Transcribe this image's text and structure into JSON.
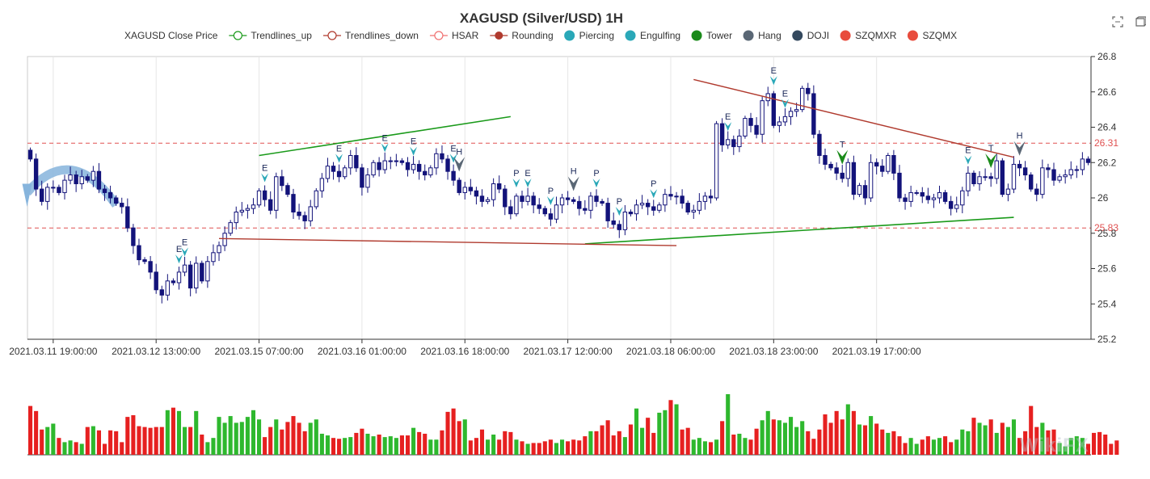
{
  "header": {
    "title": "XAGUSD (Silver/USD) 1H"
  },
  "legend": [
    {
      "label": "XAGUSD Close Price",
      "icon": "none",
      "color": "#333333"
    },
    {
      "label": "Trendlines_up",
      "icon": "circle-line",
      "color": "#1a9a1a"
    },
    {
      "label": "Trendlines_down",
      "icon": "circle-line",
      "color": "#b03a2e"
    },
    {
      "label": "HSAR",
      "icon": "circle-line",
      "color": "#f07070"
    },
    {
      "label": "Rounding",
      "icon": "dot-line",
      "color": "#b03a2e"
    },
    {
      "label": "Piercing",
      "icon": "dot",
      "color": "#2aa8b8"
    },
    {
      "label": "Engulfing",
      "icon": "dot",
      "color": "#2aa8b8"
    },
    {
      "label": "Tower",
      "icon": "dot",
      "color": "#1a8a1a"
    },
    {
      "label": "Hang",
      "icon": "dot",
      "color": "#5a6775"
    },
    {
      "label": "DOJI",
      "icon": "dot",
      "color": "#34495e"
    },
    {
      "label": "SZQMXR",
      "icon": "dot",
      "color": "#e84c3d"
    },
    {
      "label": "SZQMX",
      "icon": "dot",
      "color": "#e84c3d"
    }
  ],
  "toolbox": {
    "zoom_icon": "zoom-icon",
    "restore_icon": "restore-icon"
  },
  "watermark": "WikiFX",
  "colors": {
    "up": "#ffffff",
    "down": "#13137a",
    "candle_border": "#13137a",
    "vol_up": "#2eb82e",
    "vol_down": "#e62020",
    "trend_up": "#1a9a1a",
    "trend_down": "#b03a2e",
    "hsar": "#e05050",
    "grid": "#e6e6e6"
  },
  "chart_data": {
    "type": "candlestick",
    "title": "XAGUSD (Silver/USD) 1H",
    "ylim": [
      25.2,
      26.8
    ],
    "yticks": [
      "25.2",
      "25.4",
      "25.6",
      "25.8",
      "26",
      "26.2",
      "26.4",
      "26.6",
      "26.8"
    ],
    "xtick_labels": [
      "2021.03.11 19:00:00",
      "2021.03.12 13:00:00",
      "2021.03.15 07:00:00",
      "2021.03.16 01:00:00",
      "2021.03.16 18:00:00",
      "2021.03.17 12:00:00",
      "2021.03.18 06:00:00",
      "2021.03.18 23:00:00",
      "2021.03.19 17:00:00"
    ],
    "xtick_index": [
      4,
      22,
      40,
      58,
      76,
      94,
      112,
      130,
      148
    ],
    "grid": true,
    "hsar_levels": [
      {
        "value": 26.31,
        "label": "26.31"
      },
      {
        "value": 25.83,
        "label": "25.83"
      }
    ],
    "closes": [
      26.22,
      26.05,
      25.98,
      26.06,
      26.06,
      26.03,
      26.1,
      26.13,
      26.08,
      26.12,
      26.1,
      26.15,
      26.05,
      26.03,
      26.0,
      25.97,
      25.95,
      25.83,
      25.73,
      25.65,
      25.64,
      25.58,
      25.48,
      25.45,
      25.53,
      25.52,
      25.58,
      25.62,
      25.49,
      25.63,
      25.53,
      25.64,
      25.69,
      25.73,
      25.8,
      25.86,
      25.92,
      25.93,
      25.94,
      25.96,
      26.04,
      25.99,
      25.93,
      26.12,
      26.07,
      26.02,
      25.92,
      25.9,
      25.87,
      25.95,
      26.04,
      26.11,
      26.18,
      26.15,
      26.12,
      26.17,
      26.24,
      26.17,
      26.06,
      26.13,
      26.2,
      26.16,
      26.21,
      26.21,
      26.21,
      26.2,
      26.16,
      26.19,
      26.15,
      26.13,
      26.17,
      26.25,
      26.22,
      26.15,
      26.1,
      26.03,
      26.06,
      26.04,
      26.01,
      25.98,
      25.99,
      26.08,
      26.05,
      25.95,
      25.91,
      26.01,
      25.98,
      26.01,
      25.96,
      25.94,
      25.91,
      25.88,
      25.96,
      26.0,
      25.99,
      25.98,
      25.94,
      25.93,
      26.01,
      25.98,
      25.97,
      25.87,
      25.85,
      25.82,
      25.92,
      25.91,
      25.96,
      25.97,
      25.95,
      25.93,
      25.96,
      26.02,
      26.01,
      26.01,
      25.97,
      25.92,
      25.93,
      25.98,
      26.01,
      26.0,
      26.42,
      26.3,
      26.33,
      26.29,
      26.35,
      26.45,
      26.41,
      26.36,
      26.55,
      26.59,
      26.41,
      26.43,
      26.46,
      26.49,
      26.5,
      26.62,
      26.59,
      26.36,
      26.24,
      26.19,
      26.17,
      26.14,
      26.11,
      26.2,
      26.02,
      26.07,
      26.0,
      26.2,
      26.18,
      26.15,
      26.24,
      26.14,
      26.0,
      25.98,
      26.03,
      26.03,
      26.01,
      25.99,
      26.0,
      26.03,
      25.98,
      25.94,
      25.96,
      26.04,
      26.14,
      26.08,
      26.12,
      26.12,
      26.11,
      26.21,
      26.02,
      26.05,
      26.19,
      26.17,
      26.13,
      26.05,
      26.02,
      26.17,
      26.16,
      26.1,
      26.12,
      26.13,
      26.16,
      26.16,
      26.22,
      26.2
    ],
    "volumes": [
      58,
      52,
      30,
      33,
      37,
      20,
      15,
      17,
      15,
      13,
      33,
      34,
      29,
      13,
      29,
      28,
      15,
      45,
      47,
      34,
      33,
      32,
      33,
      33,
      53,
      56,
      52,
      33,
      33,
      52,
      24,
      15,
      20,
      45,
      38,
      46,
      38,
      39,
      45,
      53,
      42,
      21,
      33,
      42,
      30,
      39,
      46,
      38,
      28,
      38,
      42,
      25,
      23,
      20,
      19,
      20,
      21,
      26,
      31,
      25,
      22,
      24,
      21,
      22,
      20,
      23,
      23,
      32,
      27,
      25,
      18,
      18,
      29,
      51,
      55,
      40,
      42,
      17,
      20,
      30,
      18,
      24,
      18,
      28,
      27,
      18,
      16,
      13,
      14,
      14,
      16,
      18,
      14,
      18,
      16,
      18,
      17,
      22,
      28,
      28,
      35,
      41,
      23,
      28,
      21,
      36,
      55,
      32,
      44,
      26,
      50,
      53,
      65,
      60,
      30,
      32,
      18,
      20,
      16,
      15,
      18,
      40,
      72,
      24,
      25,
      20,
      18,
      31,
      41,
      52,
      42,
      41,
      38,
      45,
      33,
      40,
      28,
      19,
      30,
      48,
      38,
      52,
      42,
      60,
      52,
      36,
      35,
      46,
      37,
      30,
      26,
      28,
      22,
      14,
      20,
      13,
      18,
      22,
      18,
      20,
      22,
      15,
      18,
      30,
      28,
      44,
      38,
      35,
      42,
      26,
      38,
      33,
      42,
      20,
      28,
      58,
      33,
      38,
      29,
      30,
      14,
      10,
      20,
      22,
      20,
      13,
      26,
      27,
      24,
      13,
      17
    ],
    "trendlines_up": [
      {
        "x1": 40,
        "y1": 26.24,
        "x2": 84,
        "y2": 26.46
      },
      {
        "x1": 97,
        "y1": 25.74,
        "x2": 172,
        "y2": 25.89
      }
    ],
    "trendlines_down": [
      {
        "x1": 116,
        "y1": 26.67,
        "x2": 172,
        "y2": 26.23
      },
      {
        "x1": 33,
        "y1": 25.77,
        "x2": 113,
        "y2": 25.73
      }
    ],
    "rounding": {
      "start": 0,
      "end": 15
    },
    "signals": [
      {
        "i": 26,
        "type": "Engulfing",
        "label": "E"
      },
      {
        "i": 27,
        "type": "Engulfing",
        "label": "E"
      },
      {
        "i": 41,
        "type": "Engulfing",
        "label": "E"
      },
      {
        "i": 54,
        "type": "Engulfing",
        "label": "E"
      },
      {
        "i": 62,
        "type": "Engulfing",
        "label": "E"
      },
      {
        "i": 67,
        "type": "Engulfing",
        "label": "E"
      },
      {
        "i": 74,
        "type": "Engulfing",
        "label": "E"
      },
      {
        "i": 75,
        "type": "Hang",
        "label": "H"
      },
      {
        "i": 85,
        "type": "Piercing",
        "label": "P"
      },
      {
        "i": 87,
        "type": "Engulfing",
        "label": "E"
      },
      {
        "i": 91,
        "type": "Piercing",
        "label": "P"
      },
      {
        "i": 95,
        "type": "Hang",
        "label": "H"
      },
      {
        "i": 99,
        "type": "Piercing",
        "label": "P"
      },
      {
        "i": 103,
        "type": "Piercing",
        "label": "P"
      },
      {
        "i": 109,
        "type": "Piercing",
        "label": "P"
      },
      {
        "i": 122,
        "type": "Engulfing",
        "label": "E"
      },
      {
        "i": 130,
        "type": "Engulfing",
        "label": "E"
      },
      {
        "i": 132,
        "type": "Engulfing",
        "label": "E"
      },
      {
        "i": 142,
        "type": "Tower",
        "label": "T"
      },
      {
        "i": 164,
        "type": "Engulfing",
        "label": "E"
      },
      {
        "i": 168,
        "type": "Tower",
        "label": "T"
      },
      {
        "i": 173,
        "type": "Hang",
        "label": "H"
      }
    ]
  }
}
